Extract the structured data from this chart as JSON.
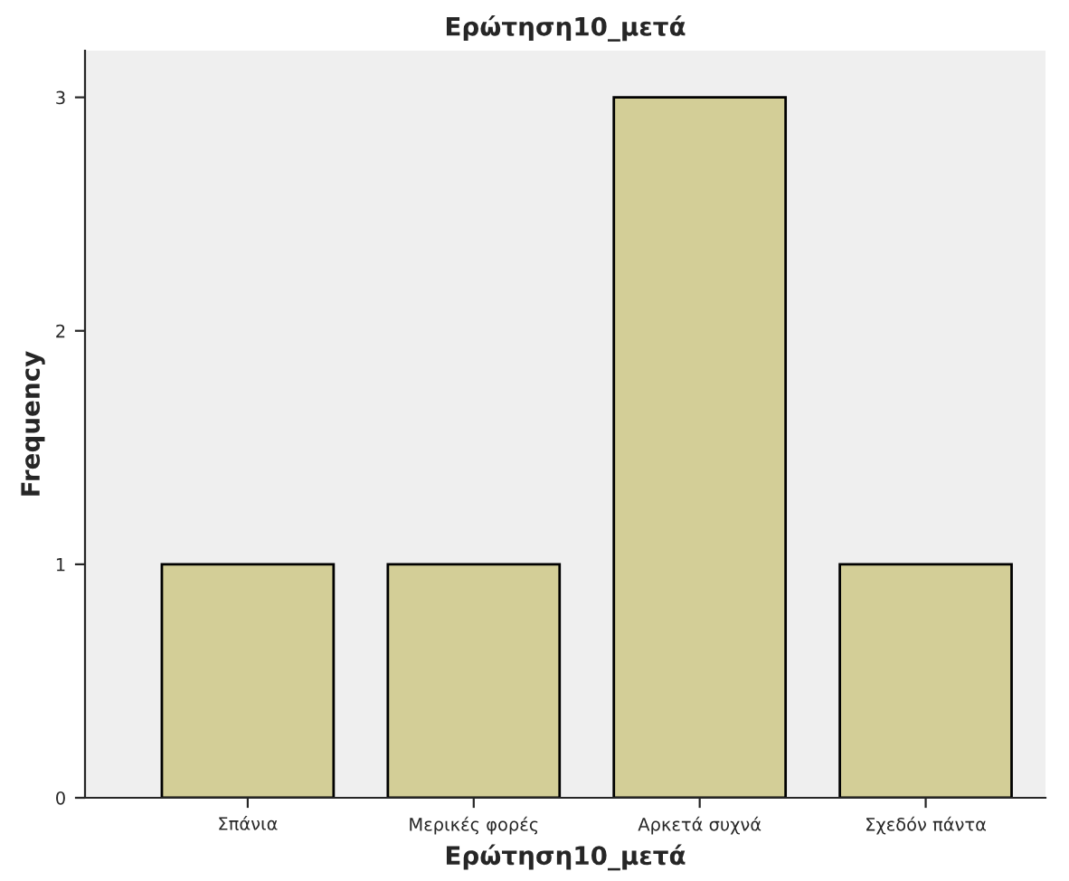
{
  "chart_data": {
    "type": "bar",
    "title": "Ερώτηση10_μετά",
    "xlabel": "Ερώτηση10_μετά",
    "ylabel": "Frequency",
    "categories": [
      "Σπάνια",
      "Μερικές φορές",
      "Αρκετά συχνά",
      "Σχεδόν πάντα"
    ],
    "values": [
      1,
      1,
      3,
      1
    ],
    "color": "#d3ce97",
    "ylim": [
      0,
      3.2
    ],
    "yticks": [
      0,
      1,
      2,
      3
    ],
    "grid": false,
    "legend": false
  }
}
